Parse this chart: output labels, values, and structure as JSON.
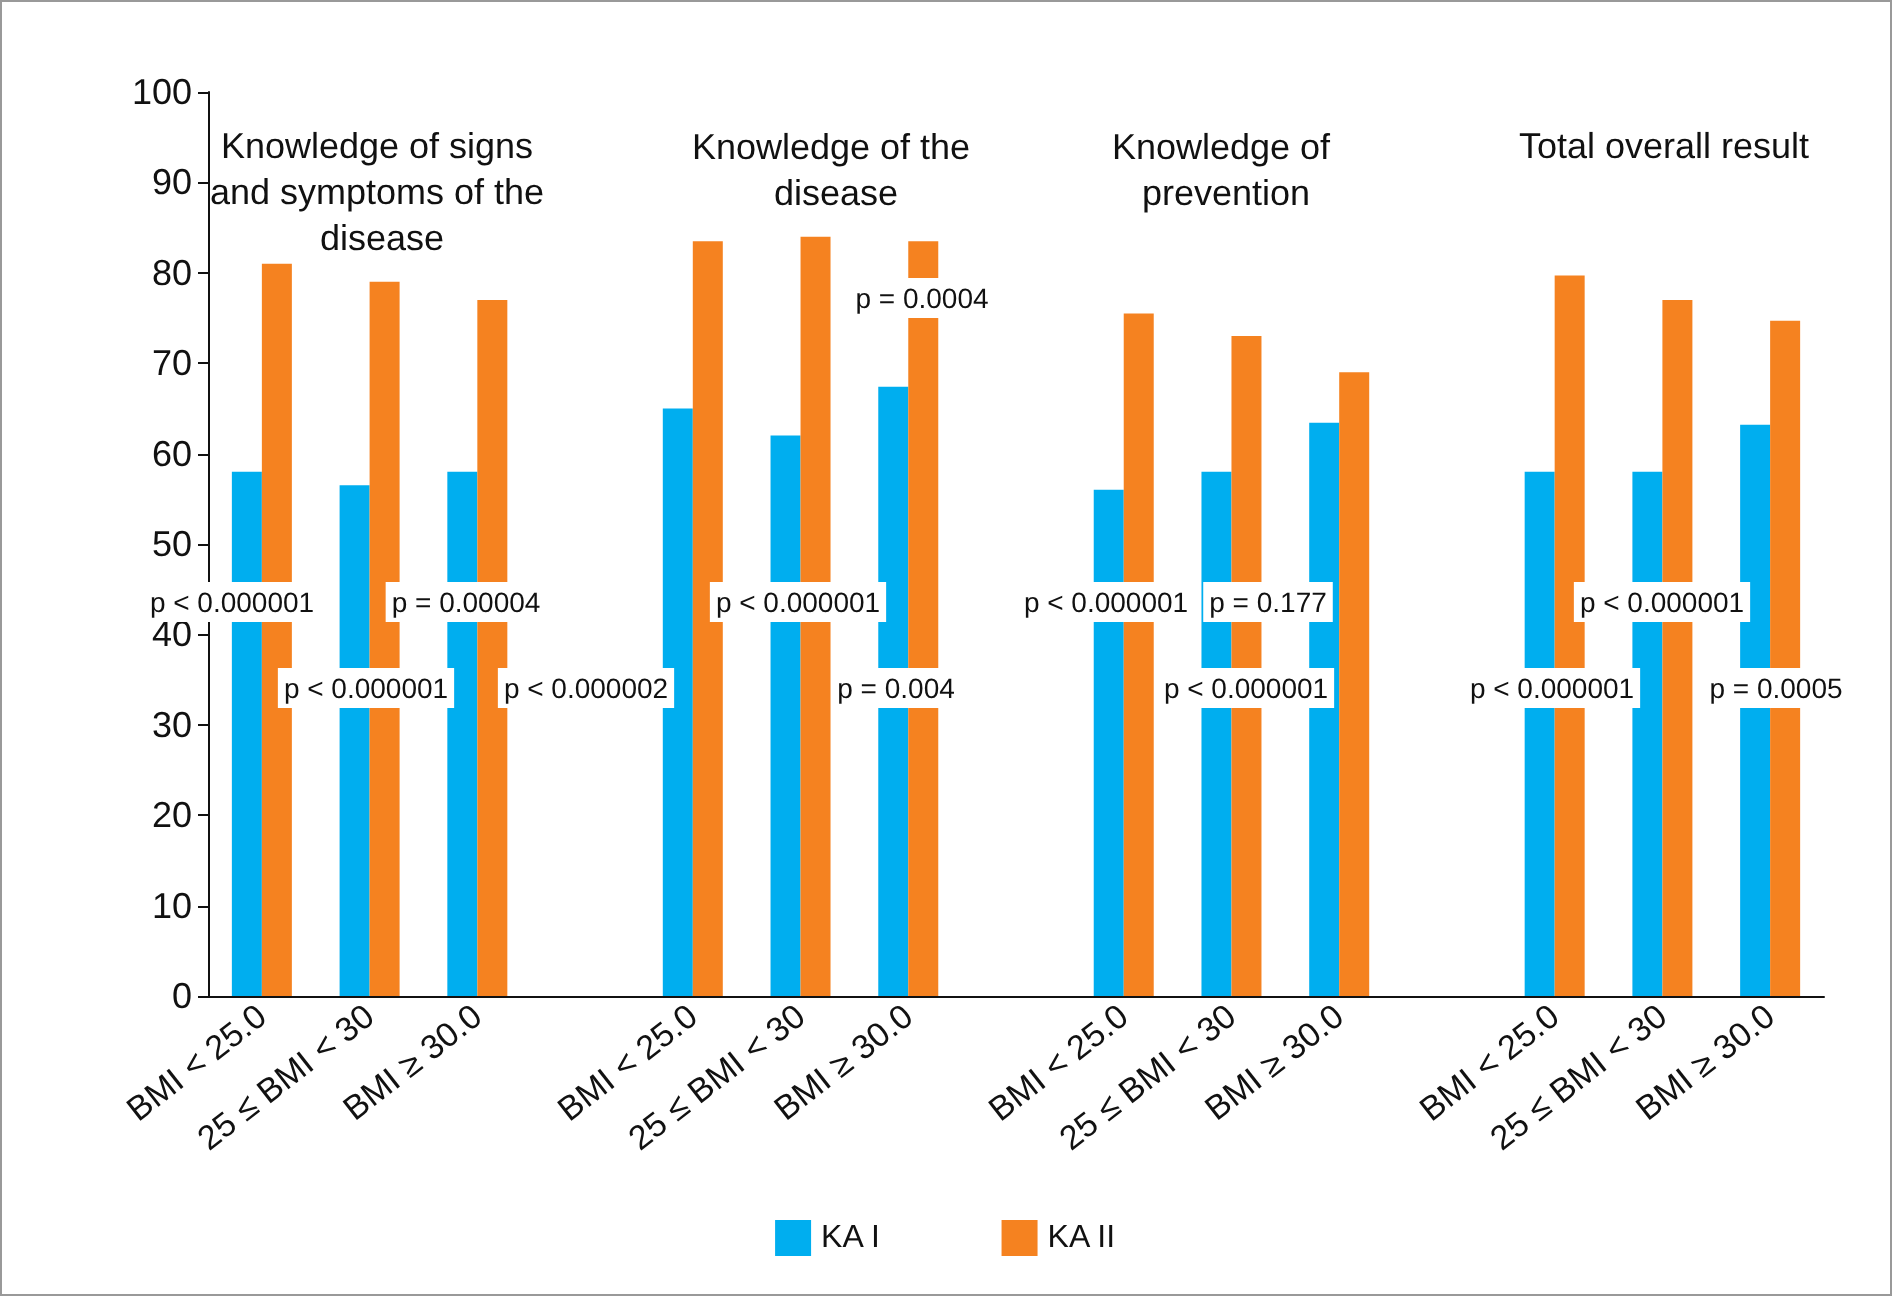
{
  "chart_data": {
    "type": "bar",
    "categories": [
      "BMI < 25.0",
      "25 ≤ BMI < 30",
      "BMI ≥ 30.0",
      null,
      "BMI < 25.0",
      "25 ≤ BMI < 30",
      "BMI ≥ 30.0",
      null,
      "BMI < 25.0",
      "25 ≤ BMI < 30",
      "BMI ≥ 30.0",
      null,
      "BMI < 25.0",
      "25 ≤ BMI < 30",
      "BMI ≥ 30.0"
    ],
    "series": [
      {
        "name": "KA I",
        "color": "#00aeef",
        "values": [
          58,
          56.5,
          58,
          null,
          65,
          62,
          67.4,
          null,
          56,
          58,
          63.4,
          null,
          58,
          58,
          63.2
        ]
      },
      {
        "name": "KA II",
        "color": "#f58220",
        "values": [
          81,
          79,
          77,
          null,
          83.5,
          84,
          83.5,
          null,
          75.5,
          73,
          69,
          null,
          79.7,
          77,
          74.7
        ]
      }
    ],
    "ylim": [
      0,
      100
    ],
    "yticks": [
      0,
      10,
      20,
      30,
      40,
      50,
      60,
      70,
      80,
      90,
      100
    ],
    "grid": false,
    "legend": "bottom",
    "annotations": [
      "Knowledge of signs and symptoms of the disease",
      "Knowledge of the disease",
      "Knowledge of prevention",
      "Total overall result",
      "p < 0.000001",
      "p = 0.00004",
      "p < 0.000001",
      "p < 0.000001",
      "p = 0.177",
      "p < 0.000001",
      "p < 0.000001",
      "p < 0.000002",
      "p = 0.004",
      "p < 0.000001",
      "p < 0.000001",
      "p = 0.0005",
      "p = 0.0004"
    ]
  }
}
